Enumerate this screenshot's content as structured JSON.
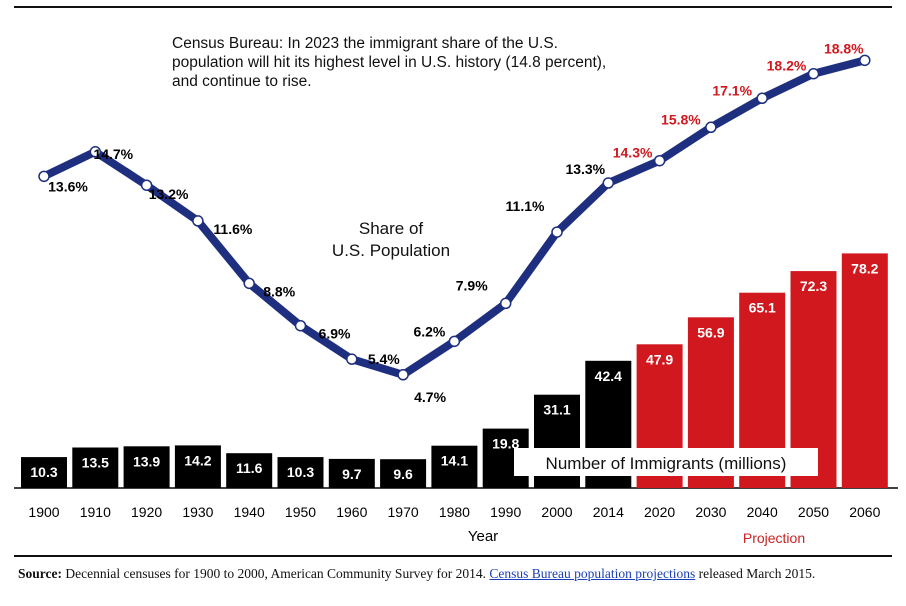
{
  "annotation": "Census Bureau: In 2023 the immigrant share of the U.S. population will hit its highest level in U.S. history (14.8 percent), and continue to rise.",
  "source": {
    "label": "Source:",
    "text_before": "Decennial censuses for 1900 to 2000, American Community Survey for 2014.",
    "link_text": "Census Bureau population projections",
    "text_after": "released March 2015."
  },
  "chart_data": {
    "type": "bar",
    "categories": [
      "1900",
      "1910",
      "1920",
      "1930",
      "1940",
      "1950",
      "1960",
      "1970",
      "1980",
      "1990",
      "2000",
      "2014",
      "2020",
      "2030",
      "2040",
      "2050",
      "2060"
    ],
    "xlabel": "Year",
    "projection_label": "Projection",
    "series": [
      {
        "name": "Number of Immigrants (millions)",
        "type": "bar",
        "values": [
          10.3,
          13.5,
          13.9,
          14.2,
          11.6,
          10.3,
          9.7,
          9.6,
          14.1,
          19.8,
          31.1,
          42.4,
          47.9,
          56.9,
          65.1,
          72.3,
          78.2
        ],
        "labels": [
          "10.3",
          "13.5",
          "13.9",
          "14.2",
          "11.6",
          "10.3",
          "9.7",
          "9.6",
          "14.1",
          "19.8",
          "31.1",
          "42.4",
          "47.9",
          "56.9",
          "65.1",
          "72.3",
          "78.2"
        ]
      },
      {
        "name": "Share of U.S. Population",
        "type": "line",
        "values": [
          13.6,
          14.7,
          13.2,
          11.6,
          8.8,
          6.9,
          5.4,
          4.7,
          6.2,
          7.9,
          11.1,
          13.3,
          14.3,
          15.8,
          17.1,
          18.2,
          18.8
        ],
        "labels": [
          "13.6%",
          "14.7%",
          "13.2%",
          "11.6%",
          "8.8%",
          "6.9%",
          "5.4%",
          "4.7%",
          "6.2%",
          "7.9%",
          "11.1%",
          "13.3%",
          "14.3%",
          "15.8%",
          "17.1%",
          "18.2%",
          "18.8%"
        ]
      }
    ],
    "bar_name_lines": [
      "Number of Immigrants (millions)"
    ],
    "line_name_lines": [
      "Share of",
      "U.S. Population"
    ],
    "projection_start_index": 12,
    "colors": {
      "historical": "#000000",
      "projection": "#d0181e",
      "line": "#1f2f80",
      "projection_label": "#c92323"
    }
  }
}
